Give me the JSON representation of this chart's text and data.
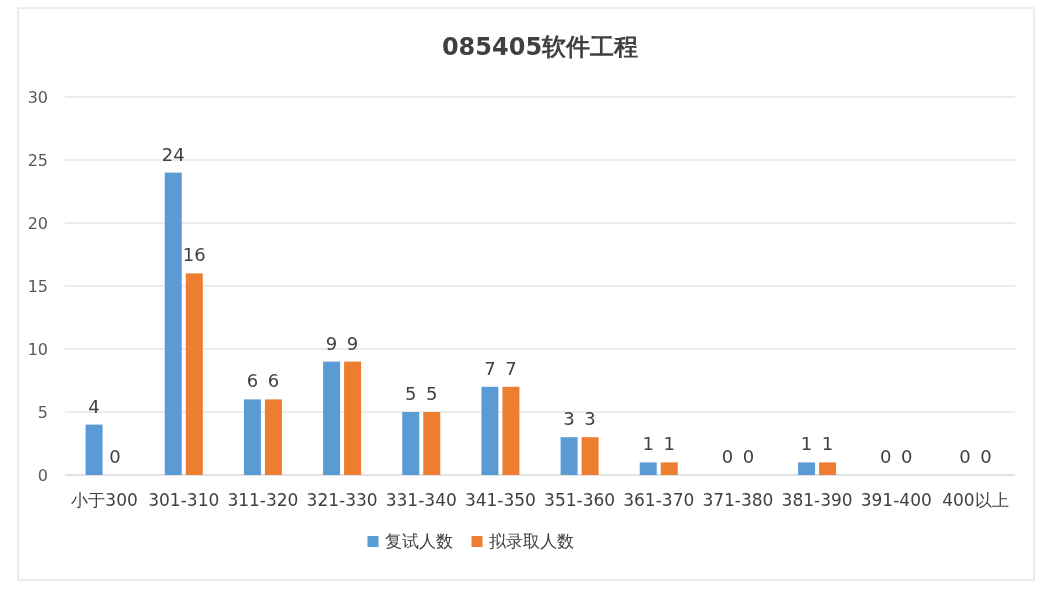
{
  "chart_data": {
    "type": "bar",
    "title": "085405软件工程",
    "categories": [
      "小于300",
      "301-310",
      "311-320",
      "321-330",
      "331-340",
      "341-350",
      "351-360",
      "361-370",
      "371-380",
      "381-390",
      "391-400",
      "400以上"
    ],
    "series": [
      {
        "name": "复试人数",
        "color": "#5b9bd5",
        "values": [
          4,
          24,
          6,
          9,
          5,
          7,
          3,
          1,
          0,
          1,
          0,
          0
        ]
      },
      {
        "name": "拟录取人数",
        "color": "#ed7d31",
        "values": [
          0,
          16,
          6,
          9,
          5,
          7,
          3,
          1,
          0,
          1,
          0,
          0
        ]
      }
    ],
    "ylim": [
      0,
      30
    ],
    "yticks": [
      0,
      5,
      10,
      15,
      20,
      25,
      30
    ],
    "grid": "y",
    "legend": "bottom",
    "data_labels": true
  }
}
